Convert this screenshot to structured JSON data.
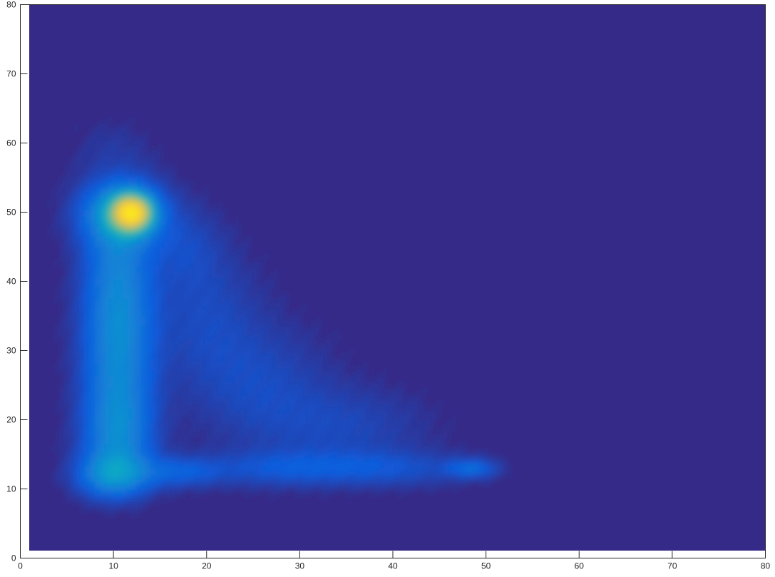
{
  "chart_data": {
    "type": "heatmap",
    "title": "",
    "xlabel": "",
    "ylabel": "",
    "xlim": [
      0,
      80
    ],
    "ylim": [
      0,
      80
    ],
    "data_extent": {
      "x": [
        1,
        80
      ],
      "y": [
        1,
        80
      ]
    },
    "xticks": [
      "0",
      "10",
      "20",
      "30",
      "40",
      "50",
      "60",
      "70",
      "80"
    ],
    "yticks": [
      "0",
      "10",
      "20",
      "30",
      "40",
      "50",
      "60",
      "70",
      "80"
    ],
    "grid": false,
    "colormap": "parula",
    "colorbar": false,
    "background_color": "#352a87",
    "density_components": [
      {
        "x": 12,
        "y": 50,
        "sx": 1.4,
        "sy": 1.7,
        "amp": 0.62
      },
      {
        "x": 11,
        "y": 50,
        "sx": 3.0,
        "sy": 3.2,
        "amp": 0.28
      },
      {
        "x": 10.5,
        "y": 42,
        "sx": 2.6,
        "sy": 5,
        "amp": 0.16
      },
      {
        "x": 10.5,
        "y": 33,
        "sx": 2.6,
        "sy": 5,
        "amp": 0.17
      },
      {
        "x": 10.5,
        "y": 24,
        "sx": 2.6,
        "sy": 5,
        "amp": 0.16
      },
      {
        "x": 10.5,
        "y": 17,
        "sx": 2.6,
        "sy": 4,
        "amp": 0.16
      },
      {
        "x": 10,
        "y": 12,
        "sx": 2.6,
        "sy": 2.2,
        "amp": 0.22
      },
      {
        "x": 17,
        "y": 12.5,
        "sx": 3,
        "sy": 1.5,
        "amp": 0.1
      },
      {
        "x": 28,
        "y": 13,
        "sx": 6,
        "sy": 1.8,
        "amp": 0.08
      },
      {
        "x": 40,
        "y": 13,
        "sx": 6,
        "sy": 1.8,
        "amp": 0.07
      },
      {
        "x": 48.5,
        "y": 13,
        "sx": 1.8,
        "sy": 0.9,
        "amp": 0.12
      },
      {
        "x": 20,
        "y": 35,
        "sx": 4,
        "sy": 7,
        "amp": 0.06
      },
      {
        "x": 26,
        "y": 25,
        "sx": 5,
        "sy": 6,
        "amp": 0.06
      },
      {
        "x": 35,
        "y": 19,
        "sx": 6,
        "sy": 4,
        "amp": 0.055
      },
      {
        "x": 18,
        "y": 45,
        "sx": 2.5,
        "sy": 4,
        "amp": 0.05
      },
      {
        "x": 10,
        "y": 59,
        "sx": 3,
        "sy": 3,
        "amp": 0.03
      }
    ]
  }
}
